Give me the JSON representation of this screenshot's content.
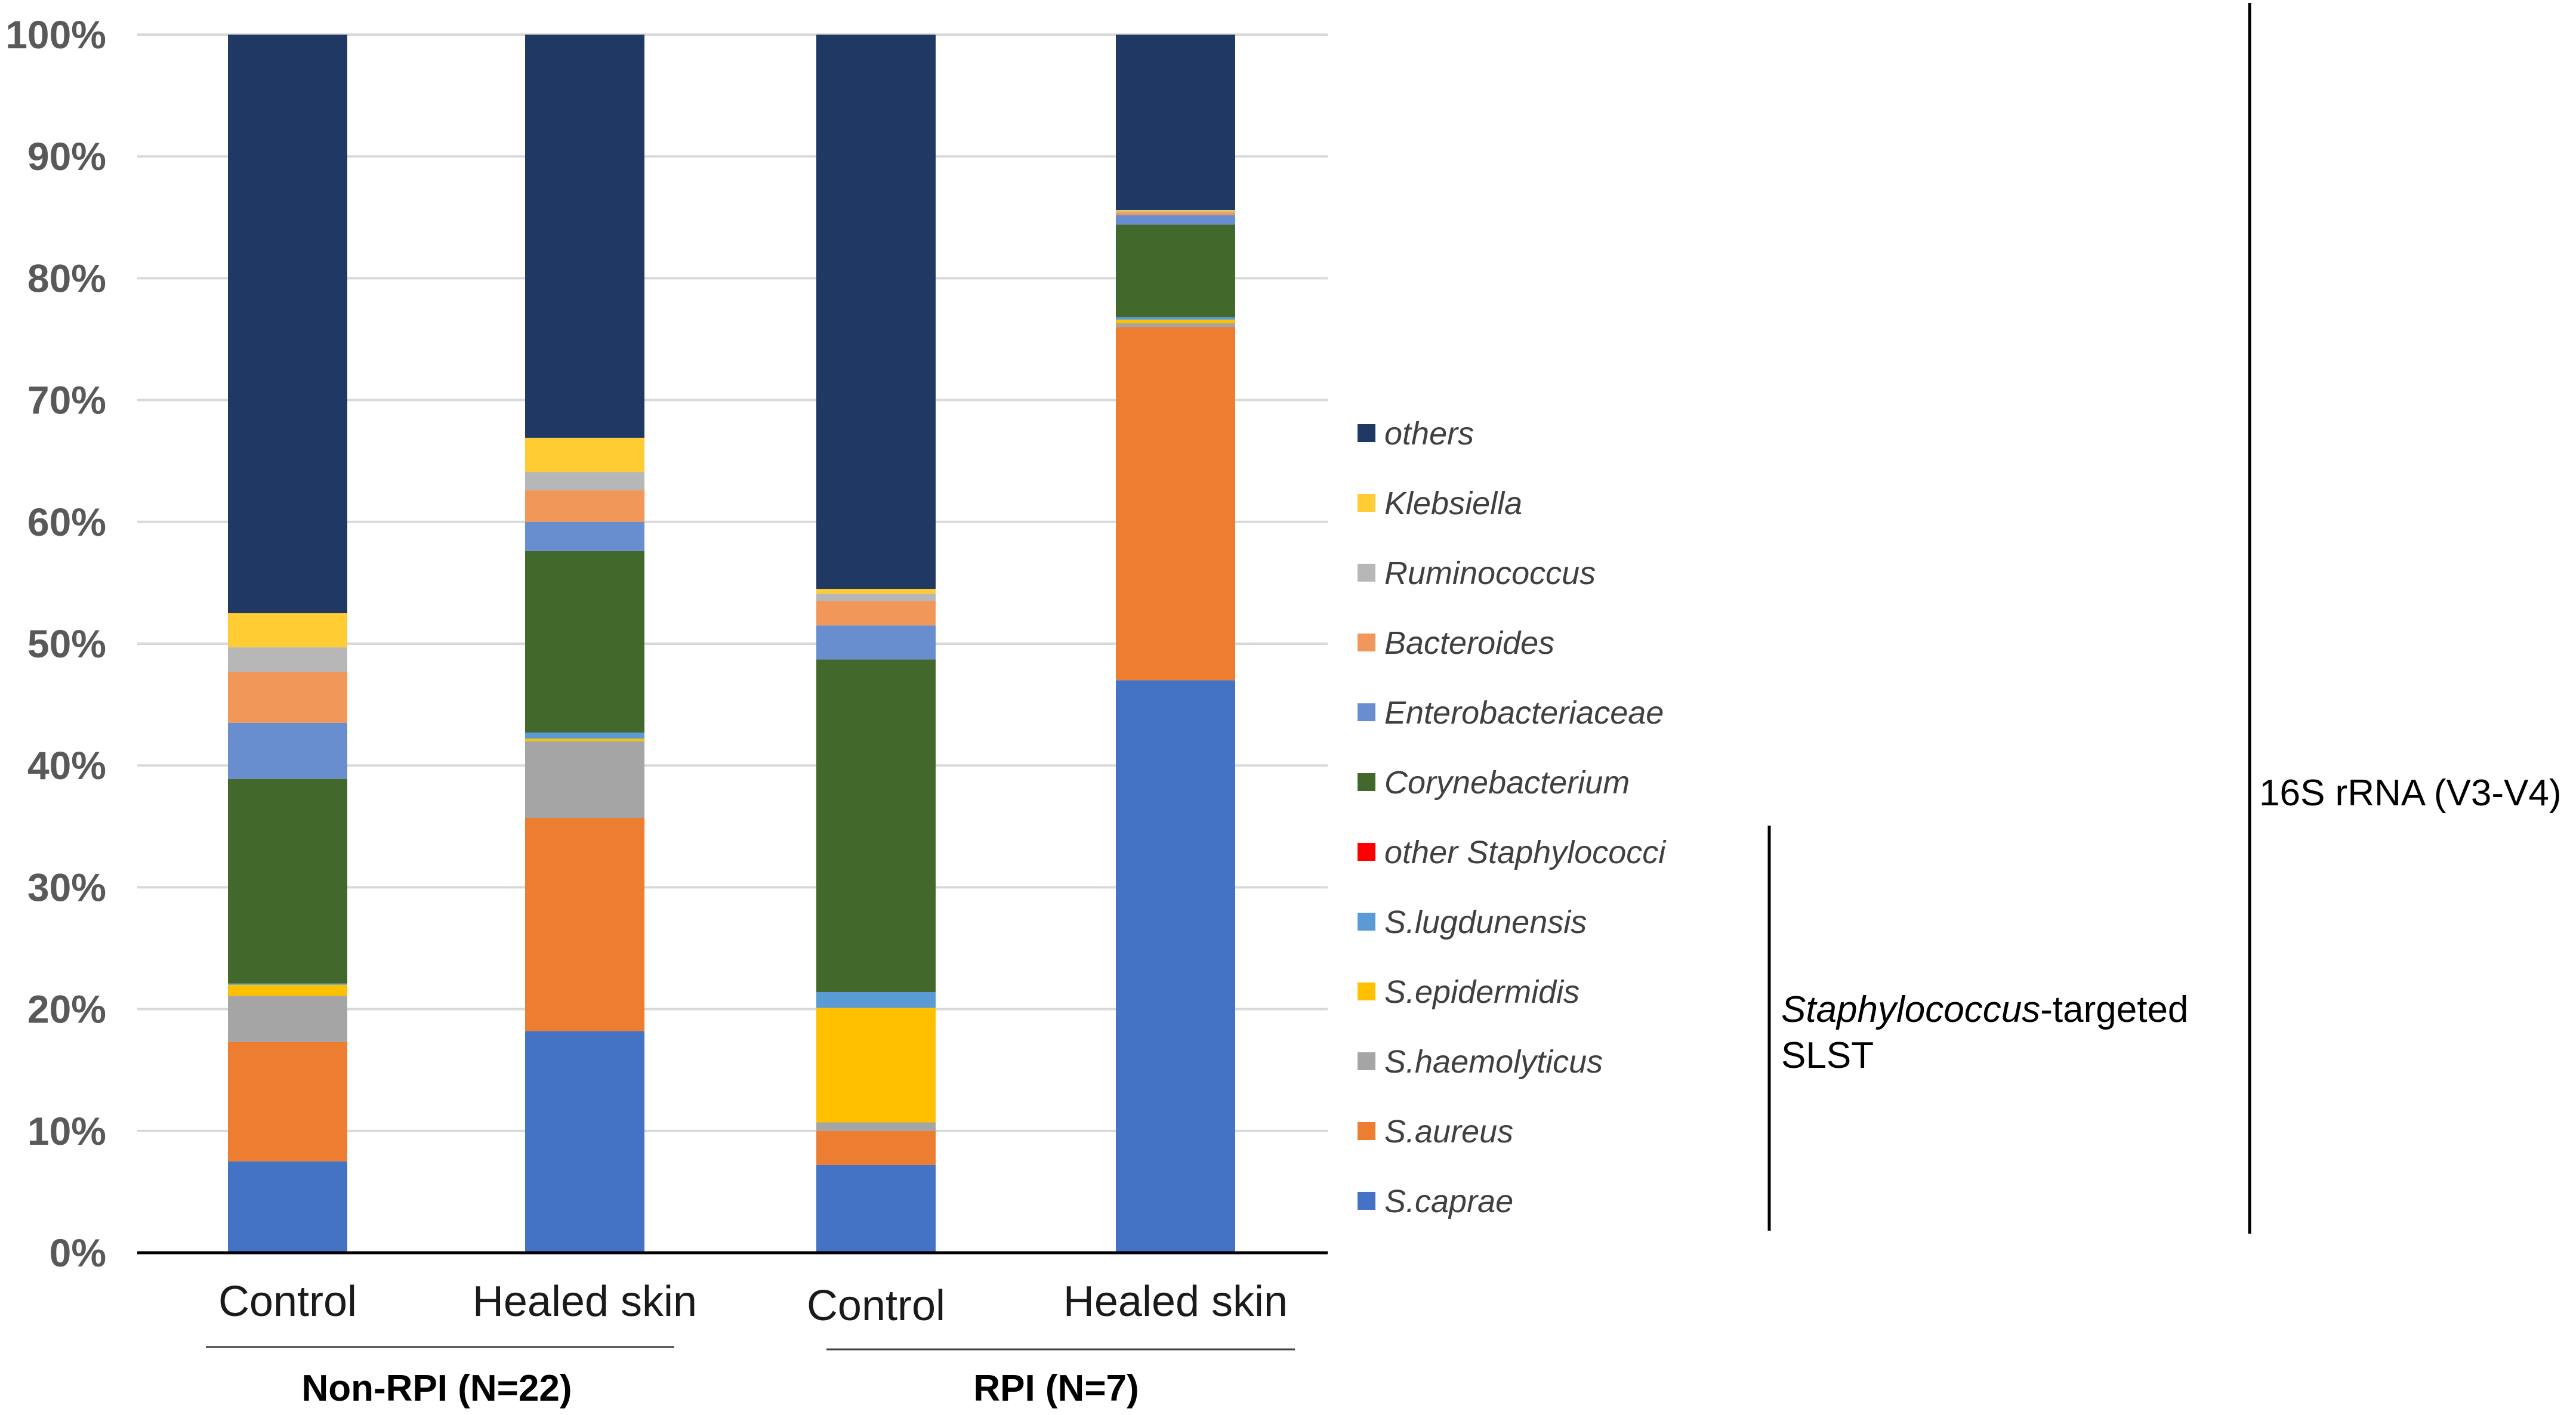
{
  "chart_data": {
    "type": "bar",
    "stacked": true,
    "ylim": [
      0,
      100
    ],
    "ytick_labels": [
      "0%",
      "10%",
      "20%",
      "30%",
      "40%",
      "50%",
      "60%",
      "70%",
      "80%",
      "90%",
      "100%"
    ],
    "categories": [
      "Control",
      "Healed skin",
      "Control",
      "Healed skin"
    ],
    "groups": [
      {
        "label": "Non-RPI (N=22)",
        "members": [
          0,
          1
        ]
      },
      {
        "label": "RPI (N=7)",
        "members": [
          2,
          3
        ]
      }
    ],
    "series": [
      {
        "name": "S.caprae",
        "color": "#4472C4",
        "values": [
          7.5,
          18.2,
          7.2,
          47.0
        ]
      },
      {
        "name": "S.aureus",
        "color": "#ED7D31",
        "values": [
          9.8,
          17.5,
          2.8,
          29.0
        ]
      },
      {
        "name": "S.haemolyticus",
        "color": "#A5A5A5",
        "values": [
          3.8,
          6.3,
          0.7,
          0.3
        ]
      },
      {
        "name": "S.epidermidis",
        "color": "#FFC000",
        "values": [
          0.9,
          0.2,
          9.4,
          0.3
        ]
      },
      {
        "name": "S.lugdunensis",
        "color": "#5B9BD5",
        "values": [
          0.1,
          0.5,
          1.3,
          0.2
        ]
      },
      {
        "name": "other Staphylococci",
        "color": "#FF0000",
        "values": [
          0.0,
          0.0,
          0.0,
          0.0
        ]
      },
      {
        "name": "Corynebacterium",
        "color": "#43682B",
        "values": [
          16.8,
          14.9,
          27.3,
          7.6
        ]
      },
      {
        "name": "Enterobacteriaceae",
        "color": "#698ED0",
        "values": [
          4.6,
          2.4,
          2.8,
          0.8
        ]
      },
      {
        "name": "Bacteroides",
        "color": "#F1975A",
        "values": [
          4.2,
          2.6,
          2.0,
          0.2
        ]
      },
      {
        "name": "Ruminococcus",
        "color": "#B7B7B7",
        "values": [
          2.0,
          1.5,
          0.6,
          0.1
        ]
      },
      {
        "name": "Klebsiella",
        "color": "#FFCD33",
        "values": [
          2.8,
          2.8,
          0.4,
          0.1
        ]
      },
      {
        "name": "others",
        "color": "#203864",
        "values": [
          47.5,
          33.1,
          45.5,
          14.4
        ]
      }
    ],
    "legend": {
      "placement": "right",
      "items": [
        "others",
        "Klebsiella",
        "Ruminococcus",
        "Bacteroides",
        "Enterobacteriaceae",
        "Corynebacterium",
        "other Staphylococci",
        "S.lugdunensis",
        "S.epidermidis",
        "S.haemolyticus",
        "S.aureus",
        "S.caprae"
      ]
    },
    "brackets": {
      "staph": {
        "italic": "Staphylococcus",
        "rest": "-targeted",
        "line2": "SLST"
      },
      "rrna": {
        "label": "16S rRNA (V3-V4)"
      }
    },
    "grid": true
  }
}
